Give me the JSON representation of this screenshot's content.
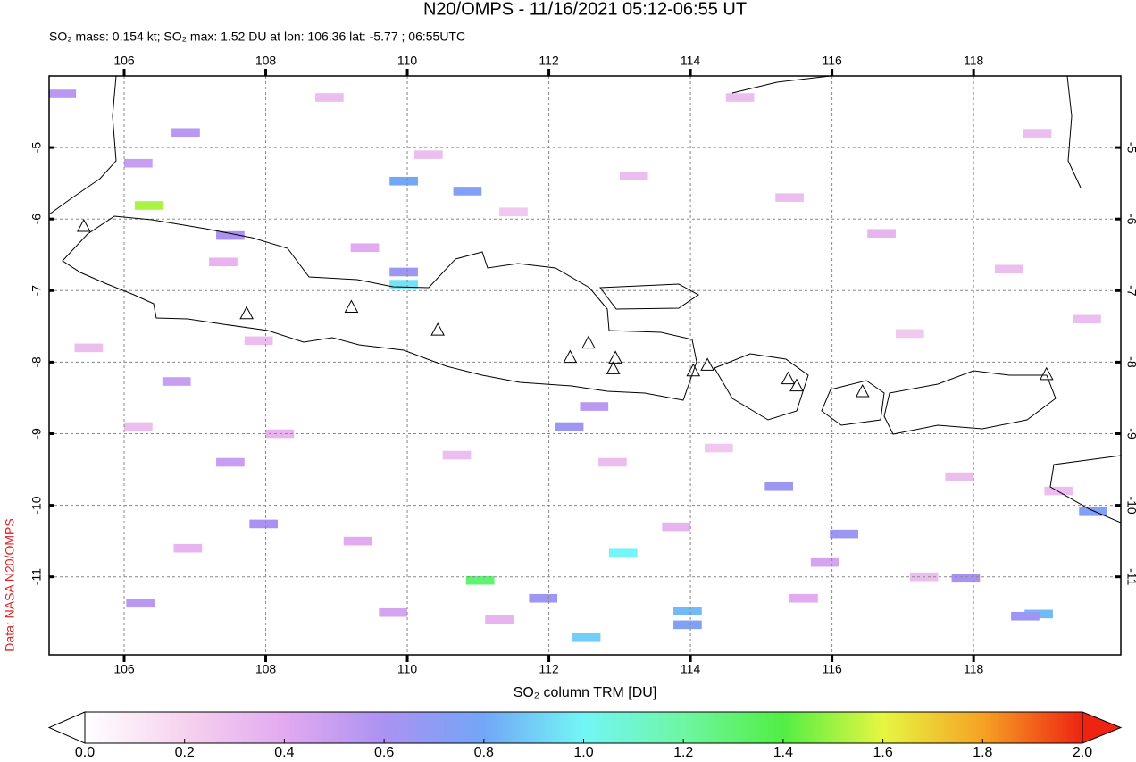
{
  "chart_data": {
    "type": "map",
    "title": "N20/OMPS - 11/16/2021 05:12-06:55 UT",
    "subtitle": "SO₂ mass: 0.154 kt; SO₂ max: 1.52 DU at lon: 106.36 lat: -5.77 ; 06:55UTC",
    "credit": "Data: NASA N20/OMPS",
    "xlim": [
      104.94,
      120.08
    ],
    "ylim": [
      -12.09,
      -4.0
    ],
    "xticks": [
      106,
      108,
      110,
      112,
      114,
      116,
      118
    ],
    "yticks": [
      -5,
      -6,
      -7,
      -8,
      -9,
      -10,
      -11
    ],
    "grid": true,
    "volcanoes": {
      "lon": [
        105.43,
        107.73,
        109.21,
        110.43,
        112.3,
        112.56,
        112.94,
        112.91,
        114.04,
        114.24,
        115.38,
        115.5,
        116.43,
        119.03
      ],
      "lat": [
        -6.11,
        -7.33,
        -7.24,
        -7.56,
        -7.94,
        -7.74,
        -7.95,
        -8.1,
        -8.13,
        -8.05,
        -8.24,
        -8.34,
        -8.42,
        -8.18
      ]
    },
    "cells": {
      "lon": [
        106.35,
        109.95,
        110.85,
        109.95,
        109.95,
        107.5,
        106.87,
        106.2,
        105.12,
        111.03,
        113.05,
        112.53,
        113.96,
        113.96,
        111.92,
        112.29,
        112.64,
        115.25,
        116.17,
        118.92,
        118.73,
        119.69,
        107.97,
        106.23,
        107.5,
        117.89,
        106.74,
        108.9,
        110.3,
        107.4,
        109.4,
        111.5,
        113.2,
        115.4,
        116.7,
        118.5,
        119.6,
        117.1,
        106.2,
        108.2,
        110.7,
        112.9,
        114.4,
        117.8,
        106.9,
        109.3,
        111.3,
        115.6,
        117.3,
        119.2,
        105.5,
        113.8,
        115.9,
        109.8,
        114.7,
        118.9,
        107.9
      ],
      "lat": [
        -5.81,
        -5.47,
        -5.61,
        -6.91,
        -6.74,
        -6.23,
        -4.79,
        -5.22,
        -4.25,
        -11.05,
        -10.67,
        -11.85,
        -11.48,
        -11.67,
        -11.3,
        -8.9,
        -8.62,
        -9.74,
        -10.4,
        -11.52,
        -11.55,
        -10.09,
        -10.26,
        -11.37,
        -9.4,
        -11.02,
        -8.27,
        -4.3,
        -5.1,
        -6.6,
        -6.4,
        -5.9,
        -5.4,
        -5.7,
        -6.2,
        -6.7,
        -7.4,
        -7.6,
        -8.9,
        -9.0,
        -9.3,
        -9.4,
        -9.2,
        -9.6,
        -10.6,
        -10.5,
        -11.6,
        -11.3,
        -11.0,
        -9.8,
        -7.8,
        -10.3,
        -10.8,
        -11.5,
        -4.3,
        -4.8,
        -7.7
      ],
      "values": [
        1.52,
        0.8,
        0.75,
        0.95,
        0.65,
        0.6,
        0.55,
        0.5,
        0.55,
        1.3,
        1.0,
        0.9,
        0.85,
        0.75,
        0.65,
        0.65,
        0.55,
        0.65,
        0.65,
        0.85,
        0.65,
        0.75,
        0.6,
        0.55,
        0.5,
        0.6,
        0.5,
        0.3,
        0.3,
        0.35,
        0.4,
        0.25,
        0.3,
        0.3,
        0.35,
        0.3,
        0.3,
        0.25,
        0.3,
        0.35,
        0.3,
        0.3,
        0.25,
        0.3,
        0.35,
        0.4,
        0.35,
        0.4,
        0.3,
        0.3,
        0.3,
        0.35,
        0.45,
        0.45,
        0.3,
        0.3,
        0.3
      ]
    },
    "colorbar": {
      "label": "SO₂ column TRM [DU]",
      "clim": [
        0,
        2
      ],
      "ticks": [
        {
          "value": 0,
          "label": "0.0"
        },
        {
          "value": 0.2,
          "label": "0.2"
        },
        {
          "value": 0.4,
          "label": "0.4"
        },
        {
          "value": 0.6,
          "label": "0.6"
        },
        {
          "value": 0.8,
          "label": "0.8"
        },
        {
          "value": 1,
          "label": "1.0"
        },
        {
          "value": 1.2,
          "label": "1.2"
        },
        {
          "value": 1.4,
          "label": "1.4"
        },
        {
          "value": 1.6,
          "label": "1.6"
        },
        {
          "value": 1.8,
          "label": "1.8"
        },
        {
          "value": 2,
          "label": "2.0"
        }
      ],
      "colors": [
        "#ffffff",
        "#f6d2ee",
        "#e2aaf0",
        "#ab92f2",
        "#72a6f6",
        "#72f6f6",
        "#6ef6a2",
        "#52ee44",
        "#e6f642",
        "#f6a224",
        "#ee2412"
      ]
    }
  }
}
